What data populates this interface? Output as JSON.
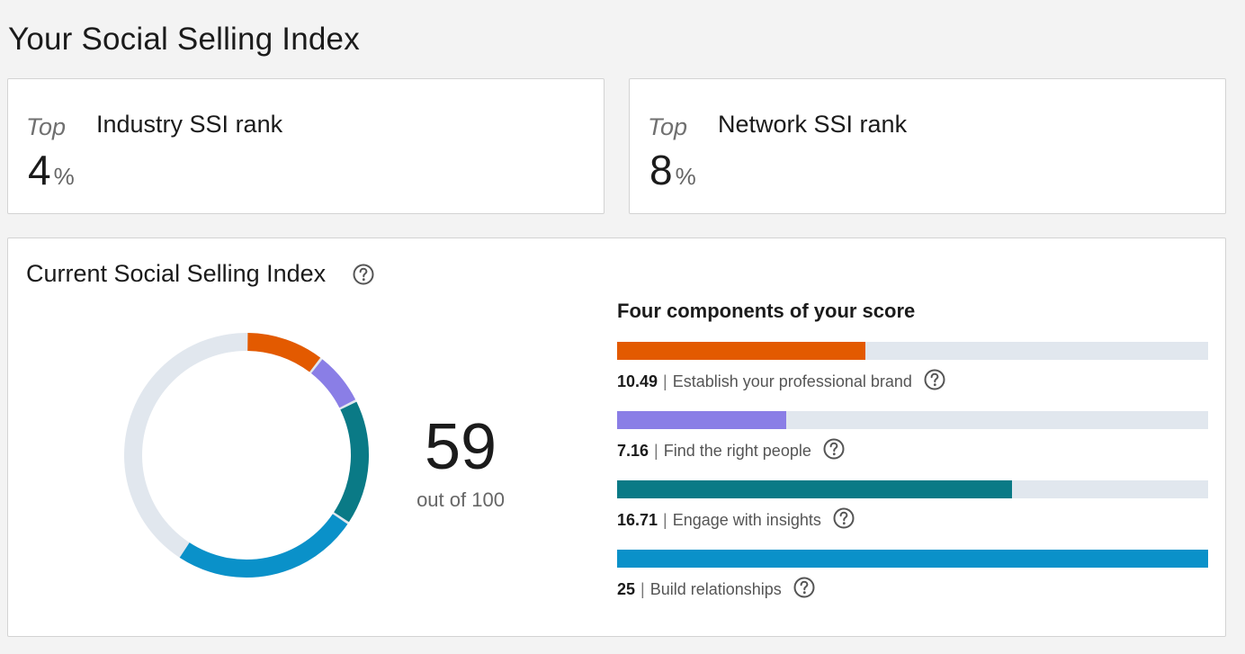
{
  "page": {
    "title": "Your Social Selling Index"
  },
  "ranks": [
    {
      "prefix": "Top",
      "value": "4",
      "unit": "%",
      "label": "Industry SSI rank"
    },
    {
      "prefix": "Top",
      "value": "8",
      "unit": "%",
      "label": "Network SSI rank"
    }
  ],
  "ssi": {
    "title": "Current Social Selling Index",
    "help_icon": "question-circle-icon",
    "score": "59",
    "score_sub": "out of 100",
    "max": 100,
    "track_color": "#e1e7ee",
    "components_title": "Four components of your score",
    "components": [
      {
        "score": "10.49",
        "label": "Establish your professional brand",
        "value": 10.49,
        "max": 25,
        "color": "#e35a00"
      },
      {
        "score": "7.16",
        "label": "Find the right people",
        "value": 7.16,
        "max": 25,
        "color": "#8a7ee6"
      },
      {
        "score": "16.71",
        "label": "Engage with insights",
        "value": 16.71,
        "max": 25,
        "color": "#0a7a86"
      },
      {
        "score": "25",
        "label": "Build relationships",
        "value": 25,
        "max": 25,
        "color": "#0a91c9"
      }
    ]
  }
}
